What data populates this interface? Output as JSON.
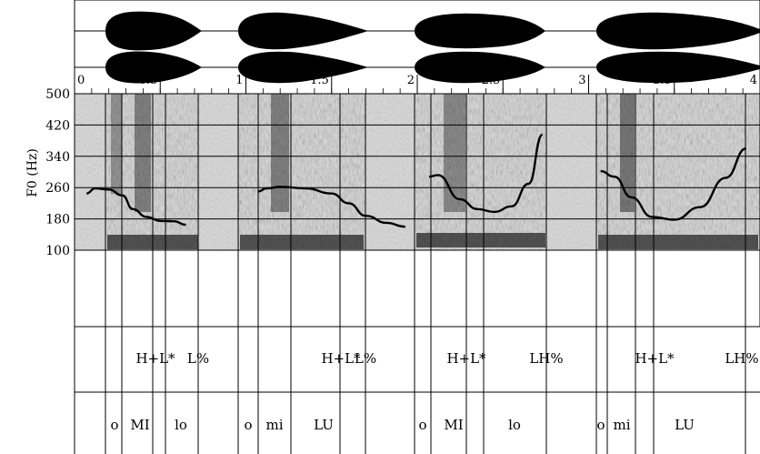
{
  "figure": {
    "y_axis_label": "F0 (Hz)",
    "y_ticks": [
      "500",
      "420",
      "340",
      "260",
      "180",
      "100"
    ],
    "time_ticks": [
      "0",
      "0.5",
      "1",
      "1.5",
      "2",
      "2.5",
      "3",
      "3.5",
      "4"
    ],
    "tone_labels": [
      {
        "text": "H+L*"
      },
      {
        "text": "L%"
      },
      {
        "text": "H+L*"
      },
      {
        "text": "L%"
      },
      {
        "text": "H+L*"
      },
      {
        "text": "LH%"
      },
      {
        "text": "H+L*"
      },
      {
        "text": "LH%"
      }
    ],
    "syllable_labels": [
      {
        "text": "o"
      },
      {
        "text": "MI"
      },
      {
        "text": "lo"
      },
      {
        "text": "o"
      },
      {
        "text": "mi"
      },
      {
        "text": "LU"
      },
      {
        "text": "o"
      },
      {
        "text": "MI"
      },
      {
        "text": "lo"
      },
      {
        "text": "o"
      },
      {
        "text": "mi"
      },
      {
        "text": "LU"
      }
    ]
  },
  "chart_data": {
    "type": "line",
    "xlabel": "",
    "ylabel": "F0 (Hz)",
    "xlim": [
      0,
      4
    ],
    "ylim": [
      100,
      500
    ],
    "grid": true,
    "series": [
      {
        "x": [
          0.07,
          0.12,
          0.2,
          0.28,
          0.34,
          0.42,
          0.5,
          0.58,
          0.65
        ],
        "values": [
          245,
          258,
          255,
          240,
          205,
          185,
          175,
          174,
          165
        ]
      },
      {
        "x": [
          1.07,
          1.12,
          1.2,
          1.35,
          1.5,
          1.6,
          1.7,
          1.82,
          1.93
        ],
        "values": [
          250,
          258,
          262,
          258,
          245,
          220,
          188,
          170,
          160
        ]
      },
      {
        "x": [
          2.07,
          2.12,
          2.25,
          2.35,
          2.45,
          2.55,
          2.65,
          2.73
        ],
        "values": [
          288,
          292,
          230,
          205,
          198,
          212,
          270,
          395
        ]
      },
      {
        "x": [
          3.07,
          3.15,
          3.25,
          3.37,
          3.5,
          3.65,
          3.8,
          3.92
        ],
        "values": [
          302,
          288,
          235,
          185,
          178,
          210,
          285,
          360
        ]
      }
    ]
  }
}
